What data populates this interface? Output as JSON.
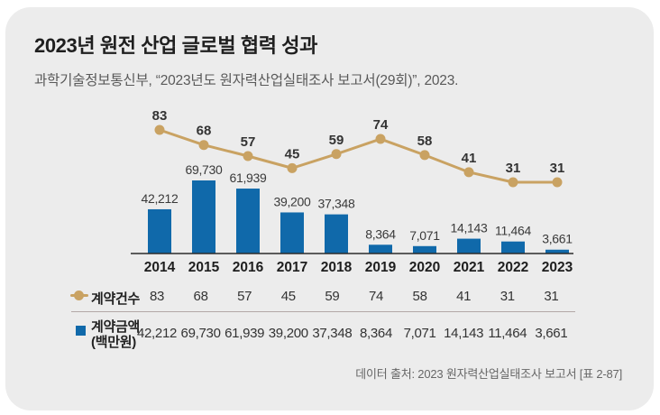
{
  "card": {
    "title": "2023년 원전 산업 글로벌 협력 성과",
    "subtitle": "과학기술정보통신부, “2023년도 원자력산업실태조사 보고서(29회)”, 2023.",
    "source_note": "데이터 출처: 2023 원자력산업실태조사 보고서 [표 2-87]"
  },
  "chart_data": {
    "type": "bar+line combo",
    "title": "2023년 원전 산업 글로벌 협력 성과",
    "categories": [
      "2014",
      "2015",
      "2016",
      "2017",
      "2018",
      "2019",
      "2020",
      "2021",
      "2022",
      "2023"
    ],
    "series": [
      {
        "name": "계약건수",
        "chart": "line",
        "color": "#C9A262",
        "values": [
          83,
          68,
          57,
          45,
          59,
          74,
          58,
          41,
          31,
          31
        ]
      },
      {
        "name": "계약금액(백만원)",
        "chart": "bar",
        "color": "#1069AA",
        "values": [
          42212,
          69730,
          61939,
          39200,
          37348,
          8364,
          7071,
          14143,
          11464,
          3661
        ]
      }
    ],
    "xlabel": "",
    "ylabel": "",
    "ylim_bar": [
      0,
      69730
    ],
    "ylim_line": [
      0,
      83
    ],
    "grid": "off",
    "value_labels_shown": true,
    "legend_position": "bottom-table"
  },
  "table": {
    "rows": [
      {
        "label": "계약건수",
        "sublabel": "",
        "values": [
          "83",
          "68",
          "57",
          "45",
          "59",
          "74",
          "58",
          "41",
          "31",
          "31"
        ]
      },
      {
        "label": "계약금액",
        "sublabel": "(백만원)",
        "values": [
          "42,212",
          "69,730",
          "61,939",
          "39,200",
          "37,348",
          "8,364",
          "7,071",
          "14,143",
          "11,464",
          "3,661"
        ]
      }
    ]
  },
  "colors": {
    "card_bg": "#ECECEC",
    "bar": "#1069AA",
    "line": "#C9A262",
    "separator": "#B3A8A6",
    "axis": "#2B2B2B",
    "title_text": "#1F1F1F",
    "subtitle_text": "#595959",
    "value_label_text": "#3A3A3A",
    "footer_text": "#676767"
  }
}
